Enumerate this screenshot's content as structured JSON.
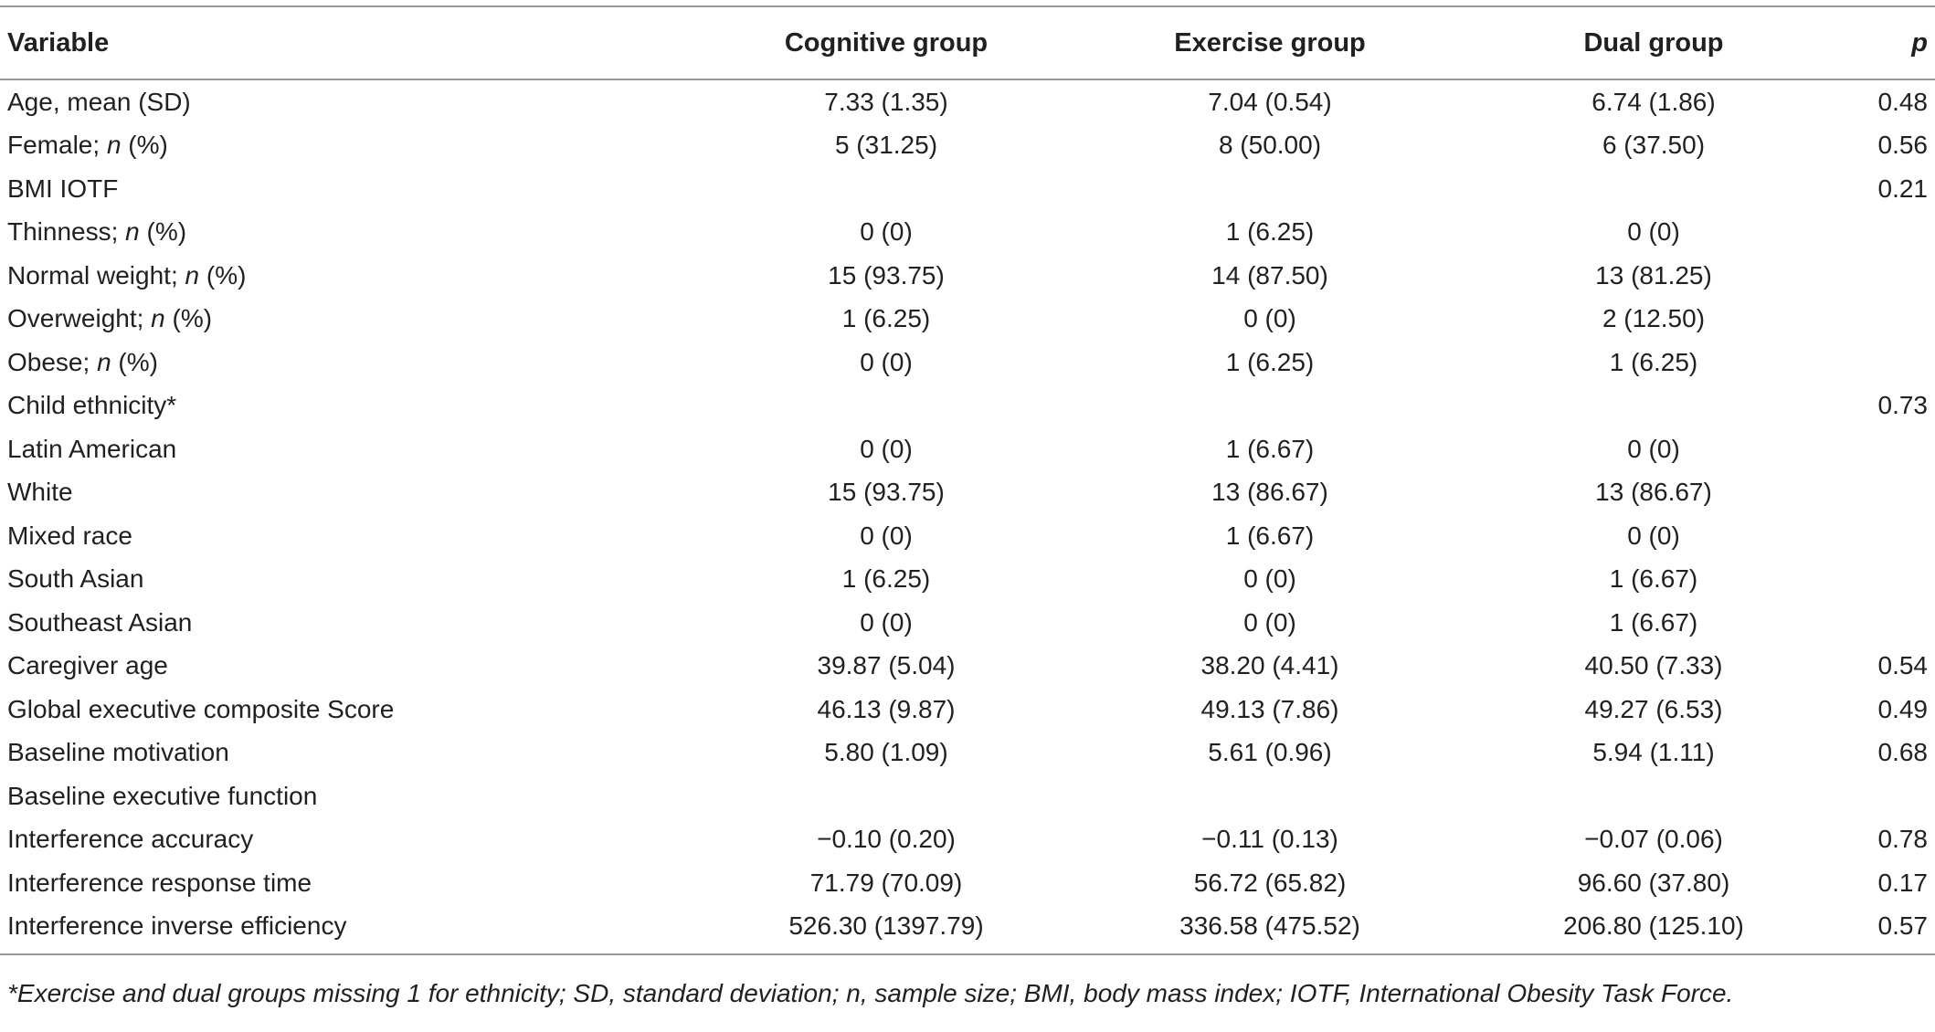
{
  "table": {
    "headers": [
      "Variable",
      "Cognitive group",
      "Exercise group",
      "Dual group",
      "p"
    ],
    "rows": [
      [
        "Age, mean (SD)",
        "7.33 (1.35)",
        "7.04 (0.54)",
        "6.74 (1.86)",
        "0.48"
      ],
      [
        "Female; n (%)",
        "5 (31.25)",
        "8 (50.00)",
        "6 (37.50)",
        "0.56"
      ],
      [
        "BMI IOTF",
        "",
        "",
        "",
        "0.21"
      ],
      [
        "Thinness; n (%)",
        "0 (0)",
        "1 (6.25)",
        "0 (0)",
        ""
      ],
      [
        "Normal weight; n (%)",
        "15 (93.75)",
        "14 (87.50)",
        "13 (81.25)",
        ""
      ],
      [
        "Overweight; n (%)",
        "1 (6.25)",
        "0 (0)",
        "2 (12.50)",
        ""
      ],
      [
        "Obese; n (%)",
        "0 (0)",
        "1 (6.25)",
        "1 (6.25)",
        ""
      ],
      [
        "Child ethnicity*",
        "",
        "",
        "",
        "0.73"
      ],
      [
        "Latin American",
        "0 (0)",
        "1 (6.67)",
        "0 (0)",
        ""
      ],
      [
        "White",
        "15 (93.75)",
        "13 (86.67)",
        "13 (86.67)",
        ""
      ],
      [
        "Mixed race",
        "0 (0)",
        "1 (6.67)",
        "0 (0)",
        ""
      ],
      [
        "South Asian",
        "1 (6.25)",
        "0 (0)",
        "1 (6.67)",
        ""
      ],
      [
        "Southeast Asian",
        "0 (0)",
        "0 (0)",
        "1 (6.67)",
        ""
      ],
      [
        "Caregiver age",
        "39.87 (5.04)",
        "38.20 (4.41)",
        "40.50 (7.33)",
        "0.54"
      ],
      [
        "Global executive composite Score",
        "46.13 (9.87)",
        "49.13 (7.86)",
        "49.27 (6.53)",
        "0.49"
      ],
      [
        "Baseline motivation",
        "5.80 (1.09)",
        "5.61 (0.96)",
        "5.94 (1.11)",
        "0.68"
      ],
      [
        "Baseline executive function",
        "",
        "",
        "",
        ""
      ],
      [
        "Interference accuracy",
        "−0.10 (0.20)",
        "−0.11 (0.13)",
        "−0.07 (0.06)",
        "0.78"
      ],
      [
        "Interference response time",
        "71.79 (70.09)",
        "56.72 (65.82)",
        "96.60 (37.80)",
        "0.17"
      ],
      [
        "Interference inverse efficiency",
        "526.30 (1397.79)",
        "336.58 (475.52)",
        "206.80 (125.10)",
        "0.57"
      ]
    ]
  },
  "footnote": "*Exercise and dual groups missing 1 for ethnicity; SD, standard deviation; n, sample size; BMI, body mass index; IOTF, International Obesity Task Force."
}
